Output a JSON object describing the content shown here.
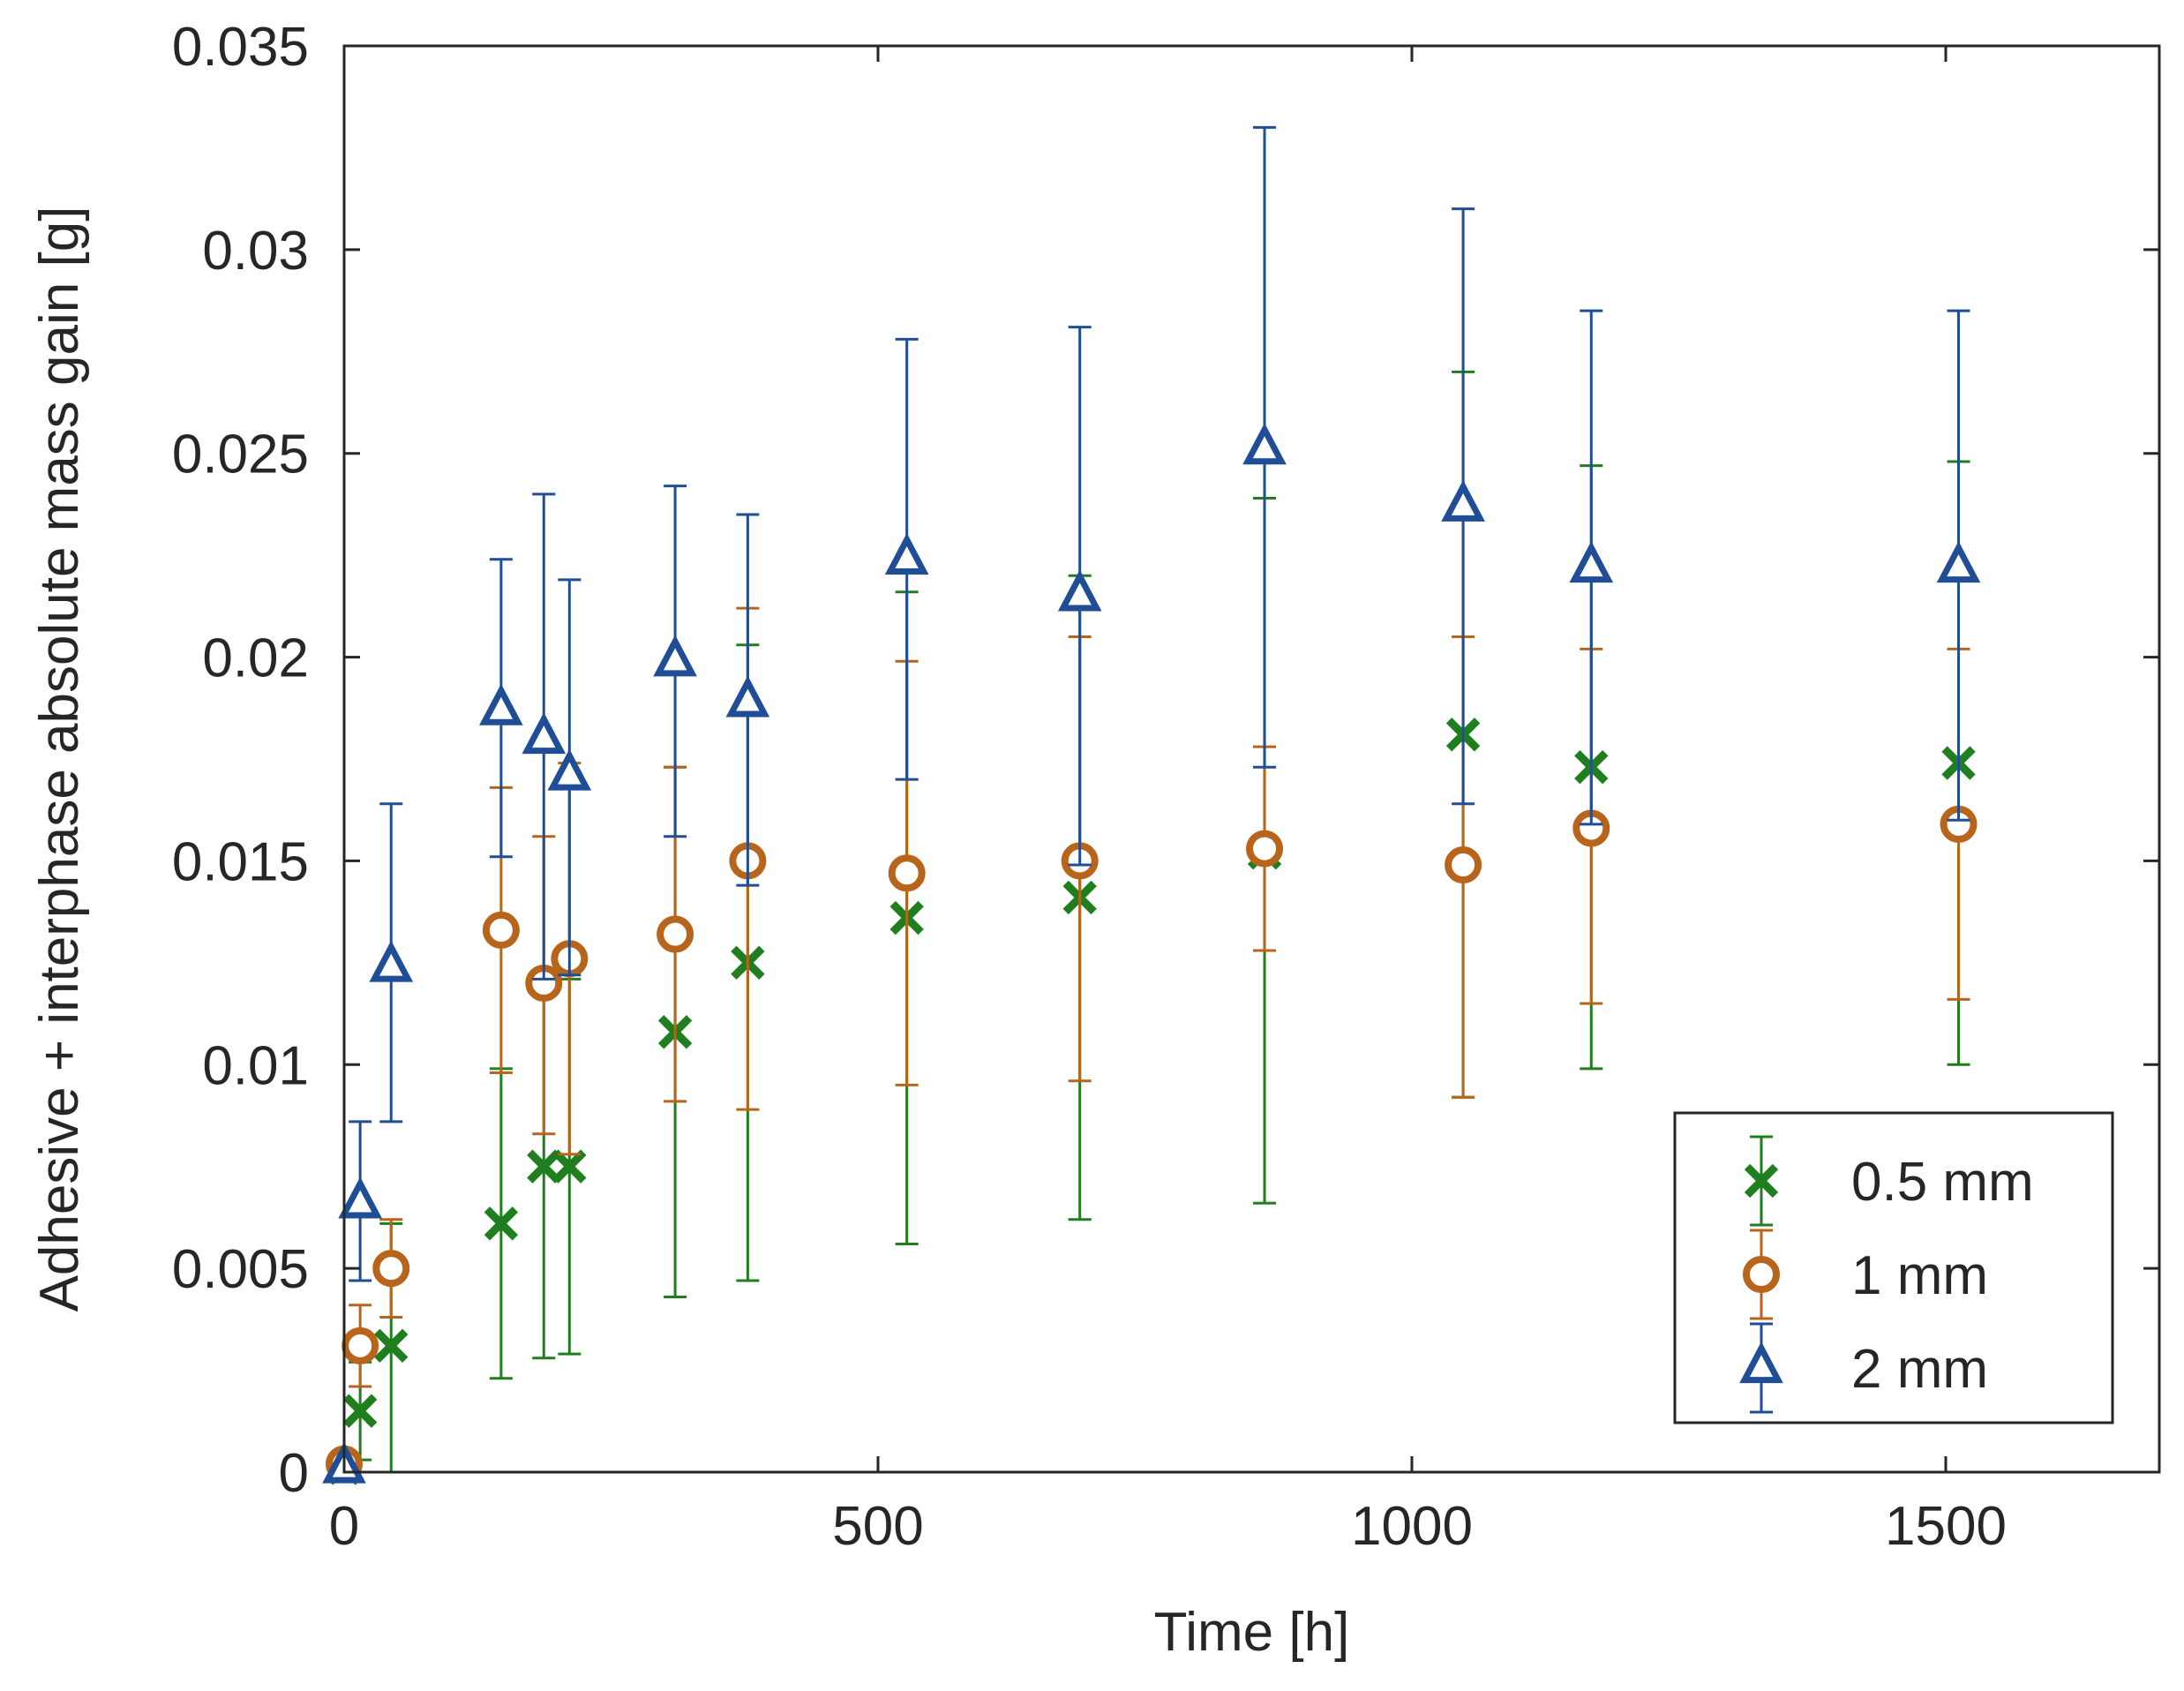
{
  "chart_data": {
    "type": "scatter",
    "title": "",
    "xlabel": "Time [h]",
    "ylabel": "Adhesive + interphase absolute mass gain [g]",
    "xlim": [
      0,
      1700
    ],
    "ylim": [
      0,
      0.035
    ],
    "grid": false,
    "legend_position": "bottom-right",
    "x_ticks": [
      0,
      500,
      1000,
      1500
    ],
    "x_tick_labels": [
      "0",
      "500",
      "1000",
      "1500"
    ],
    "y_ticks": [
      0,
      0.005,
      0.01,
      0.015,
      0.02,
      0.025,
      0.03,
      0.035
    ],
    "y_tick_labels": [
      "0",
      "0.005",
      "0.01",
      "0.015",
      "0.02",
      "0.025",
      "0.03",
      "0.035"
    ],
    "series": [
      {
        "name": "0.5 mm",
        "marker": "x",
        "color": "#1f7f1f",
        "points": [
          {
            "x": 0,
            "y": 0.0001,
            "lo": 0.0,
            "hi": 0.0003
          },
          {
            "x": 15,
            "y": 0.0015,
            "lo": 0.0003,
            "hi": 0.0027
          },
          {
            "x": 44,
            "y": 0.0031,
            "lo": 0.0,
            "hi": 0.0061
          },
          {
            "x": 147,
            "y": 0.0061,
            "lo": 0.0023,
            "hi": 0.0099
          },
          {
            "x": 187,
            "y": 0.0075,
            "lo": 0.0028,
            "hi": 0.0122
          },
          {
            "x": 211,
            "y": 0.0075,
            "lo": 0.0029,
            "hi": 0.0121
          },
          {
            "x": 310,
            "y": 0.0108,
            "lo": 0.0043,
            "hi": 0.0173
          },
          {
            "x": 378,
            "y": 0.0125,
            "lo": 0.0047,
            "hi": 0.0203
          },
          {
            "x": 527,
            "y": 0.0136,
            "lo": 0.0056,
            "hi": 0.0216
          },
          {
            "x": 689,
            "y": 0.0141,
            "lo": 0.0062,
            "hi": 0.022
          },
          {
            "x": 862,
            "y": 0.0152,
            "lo": 0.0066,
            "hi": 0.0239
          },
          {
            "x": 1048,
            "y": 0.0181,
            "lo": 0.0092,
            "hi": 0.027
          },
          {
            "x": 1168,
            "y": 0.0173,
            "lo": 0.0099,
            "hi": 0.0247
          },
          {
            "x": 1512,
            "y": 0.0174,
            "lo": 0.01,
            "hi": 0.0248
          }
        ]
      },
      {
        "name": "1 mm",
        "marker": "circle",
        "color": "#b8651b",
        "points": [
          {
            "x": 0,
            "y": 0.0002,
            "lo": 0.0,
            "hi": 0.0004
          },
          {
            "x": 15,
            "y": 0.0031,
            "lo": 0.0021,
            "hi": 0.0041
          },
          {
            "x": 44,
            "y": 0.005,
            "lo": 0.0038,
            "hi": 0.0062
          },
          {
            "x": 147,
            "y": 0.0133,
            "lo": 0.0098,
            "hi": 0.0168
          },
          {
            "x": 187,
            "y": 0.012,
            "lo": 0.0083,
            "hi": 0.0156
          },
          {
            "x": 211,
            "y": 0.0126,
            "lo": 0.0078,
            "hi": 0.0174
          },
          {
            "x": 310,
            "y": 0.0132,
            "lo": 0.0091,
            "hi": 0.0173
          },
          {
            "x": 378,
            "y": 0.015,
            "lo": 0.0089,
            "hi": 0.0212
          },
          {
            "x": 527,
            "y": 0.0147,
            "lo": 0.0095,
            "hi": 0.0199
          },
          {
            "x": 689,
            "y": 0.015,
            "lo": 0.0096,
            "hi": 0.0205
          },
          {
            "x": 862,
            "y": 0.0153,
            "lo": 0.0128,
            "hi": 0.0178
          },
          {
            "x": 1048,
            "y": 0.0149,
            "lo": 0.0092,
            "hi": 0.0205
          },
          {
            "x": 1168,
            "y": 0.0158,
            "lo": 0.0115,
            "hi": 0.0202
          },
          {
            "x": 1512,
            "y": 0.0159,
            "lo": 0.0116,
            "hi": 0.0202
          }
        ]
      },
      {
        "name": "2 mm",
        "marker": "triangle",
        "color": "#1f4e96",
        "points": [
          {
            "x": 0,
            "y": 0.0001,
            "lo": 0.0,
            "hi": 0.0002
          },
          {
            "x": 15,
            "y": 0.0066,
            "lo": 0.0047,
            "hi": 0.0086
          },
          {
            "x": 44,
            "y": 0.0124,
            "lo": 0.0086,
            "hi": 0.0164
          },
          {
            "x": 147,
            "y": 0.0187,
            "lo": 0.0151,
            "hi": 0.0224
          },
          {
            "x": 187,
            "y": 0.018,
            "lo": 0.0121,
            "hi": 0.024
          },
          {
            "x": 211,
            "y": 0.0171,
            "lo": 0.0122,
            "hi": 0.0219
          },
          {
            "x": 310,
            "y": 0.0199,
            "lo": 0.0156,
            "hi": 0.0242
          },
          {
            "x": 378,
            "y": 0.0189,
            "lo": 0.0144,
            "hi": 0.0235
          },
          {
            "x": 527,
            "y": 0.0224,
            "lo": 0.017,
            "hi": 0.0278
          },
          {
            "x": 689,
            "y": 0.0215,
            "lo": 0.0149,
            "hi": 0.0281
          },
          {
            "x": 862,
            "y": 0.0251,
            "lo": 0.0173,
            "hi": 0.033
          },
          {
            "x": 1048,
            "y": 0.0237,
            "lo": 0.0164,
            "hi": 0.031
          },
          {
            "x": 1168,
            "y": 0.0222,
            "lo": 0.0159,
            "hi": 0.0285
          },
          {
            "x": 1512,
            "y": 0.0222,
            "lo": 0.016,
            "hi": 0.0285
          }
        ]
      }
    ]
  }
}
